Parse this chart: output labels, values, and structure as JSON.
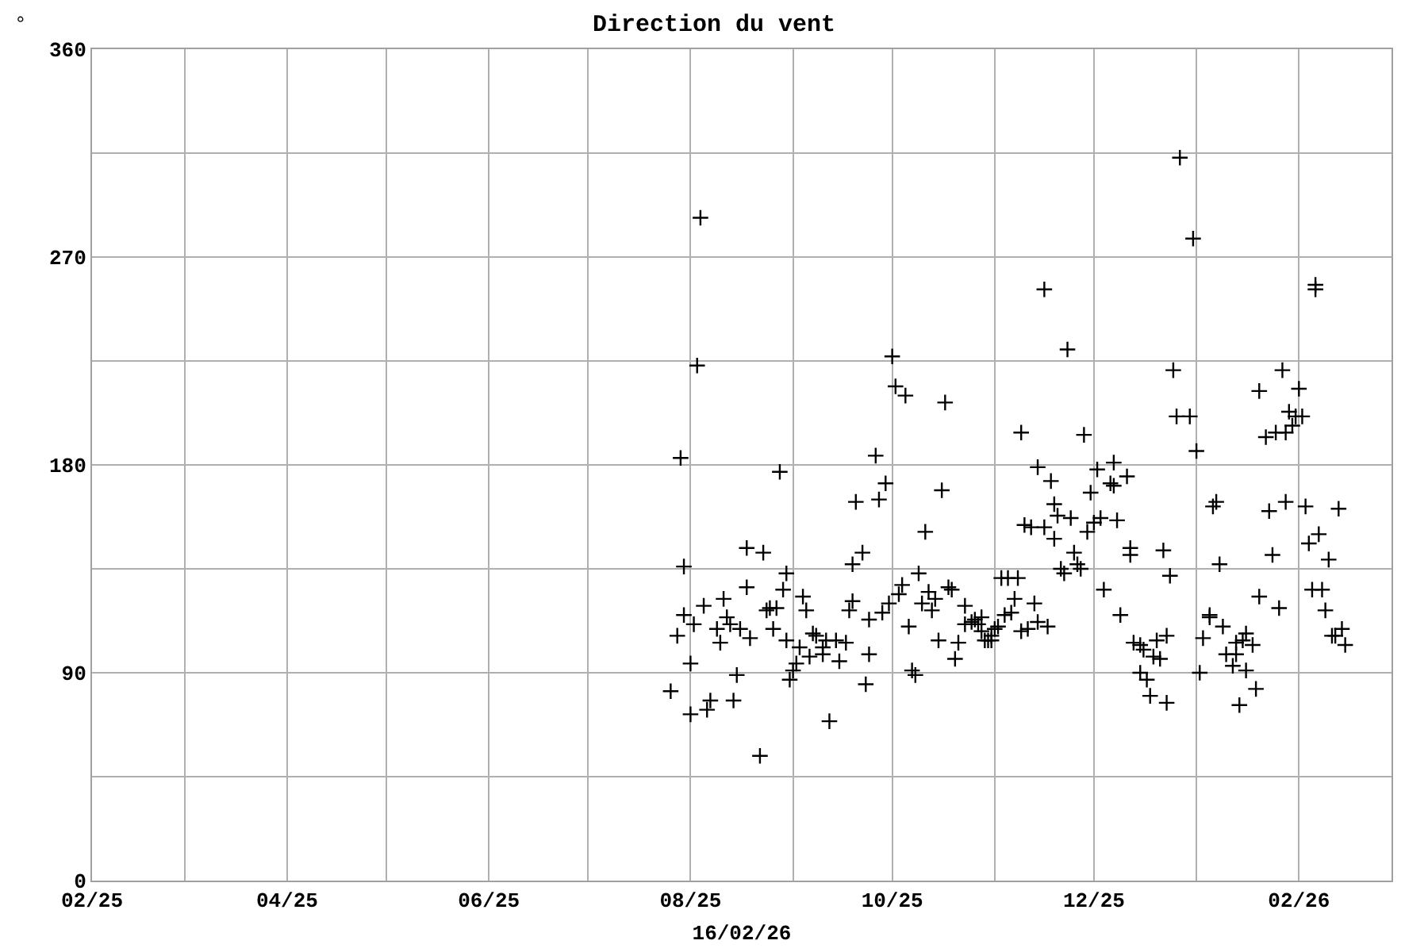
{
  "chart_data": {
    "type": "scatter",
    "title": "Direction du vent",
    "xlabel": "16/02/26",
    "ylabel": "°",
    "marker": "cross",
    "grid": true,
    "color": "#000000",
    "xlim": [
      "2025-02-01",
      "2026-03-01"
    ],
    "xticks": [
      {
        "value": "2025-02-01",
        "label": "02/25"
      },
      {
        "value": "2025-03-01",
        "label": null
      },
      {
        "value": "2025-04-01",
        "label": "04/25"
      },
      {
        "value": "2025-05-01",
        "label": null
      },
      {
        "value": "2025-06-01",
        "label": "06/25"
      },
      {
        "value": "2025-07-01",
        "label": null
      },
      {
        "value": "2025-08-01",
        "label": "08/25"
      },
      {
        "value": "2025-09-01",
        "label": null
      },
      {
        "value": "2025-10-01",
        "label": "10/25"
      },
      {
        "value": "2025-11-01",
        "label": null
      },
      {
        "value": "2025-12-01",
        "label": "12/25"
      },
      {
        "value": "2026-01-01",
        "label": null
      },
      {
        "value": "2026-02-01",
        "label": "02/26"
      }
    ],
    "ylim": [
      0,
      360
    ],
    "yticks": [
      0,
      {
        "value": 45,
        "label": null
      },
      90,
      {
        "value": 135,
        "label": null
      },
      180,
      {
        "value": 225,
        "label": null
      },
      270,
      {
        "value": 315,
        "label": null
      },
      360
    ],
    "x": [
      "2025-07-26",
      "2025-07-28",
      "2025-07-29",
      "2025-07-30",
      "2025-07-30",
      "2025-08-01",
      "2025-08-01",
      "2025-08-02",
      "2025-08-03",
      "2025-08-04",
      "2025-08-05",
      "2025-08-06",
      "2025-08-07",
      "2025-08-09",
      "2025-08-10",
      "2025-08-11",
      "2025-08-12",
      "2025-08-13",
      "2025-08-14",
      "2025-08-15",
      "2025-08-16",
      "2025-08-18",
      "2025-08-18",
      "2025-08-19",
      "2025-08-22",
      "2025-08-23",
      "2025-08-24",
      "2025-08-25",
      "2025-08-26",
      "2025-08-27",
      "2025-08-28",
      "2025-08-29",
      "2025-08-30",
      "2025-08-30",
      "2025-08-31",
      "2025-09-01",
      "2025-09-02",
      "2025-09-03",
      "2025-09-04",
      "2025-09-05",
      "2025-09-06",
      "2025-09-07",
      "2025-09-08",
      "2025-09-10",
      "2025-09-10",
      "2025-09-11",
      "2025-09-12",
      "2025-09-14",
      "2025-09-15",
      "2025-09-17",
      "2025-09-18",
      "2025-09-19",
      "2025-09-19",
      "2025-09-20",
      "2025-09-22",
      "2025-09-23",
      "2025-09-24",
      "2025-09-24",
      "2025-09-26",
      "2025-09-27",
      "2025-09-28",
      "2025-09-29",
      "2025-09-30",
      "2025-10-01",
      "2025-10-02",
      "2025-10-03",
      "2025-10-04",
      "2025-10-05",
      "2025-10-06",
      "2025-10-07",
      "2025-10-08",
      "2025-10-09",
      "2025-10-10",
      "2025-10-11",
      "2025-10-12",
      "2025-10-13",
      "2025-10-14",
      "2025-10-15",
      "2025-10-16",
      "2025-10-17",
      "2025-10-18",
      "2025-10-19",
      "2025-10-20",
      "2025-10-21",
      "2025-10-23",
      "2025-10-23",
      "2025-10-25",
      "2025-10-26",
      "2025-10-27",
      "2025-10-28",
      "2025-10-28",
      "2025-10-29",
      "2025-10-30",
      "2025-10-31",
      "2025-10-31",
      "2025-11-01",
      "2025-11-02",
      "2025-11-03",
      "2025-11-04",
      "2025-11-05",
      "2025-11-06",
      "2025-11-07",
      "2025-11-08",
      "2025-11-09",
      "2025-11-09",
      "2025-11-10",
      "2025-11-11",
      "2025-11-12",
      "2025-11-13",
      "2025-11-14",
      "2025-11-14",
      "2025-11-16",
      "2025-11-16",
      "2025-11-17",
      "2025-11-18",
      "2025-11-19",
      "2025-11-19",
      "2025-11-20",
      "2025-11-21",
      "2025-11-22",
      "2025-11-23",
      "2025-11-24",
      "2025-11-25",
      "2025-11-26",
      "2025-11-27",
      "2025-11-28",
      "2025-11-29",
      "2025-11-30",
      "2025-12-01",
      "2025-12-02",
      "2025-12-03",
      "2025-12-04",
      "2025-12-06",
      "2025-12-07",
      "2025-12-07",
      "2025-12-08",
      "2025-12-09",
      "2025-12-11",
      "2025-12-12",
      "2025-12-12",
      "2025-12-13",
      "2025-12-15",
      "2025-12-15",
      "2025-12-16",
      "2025-12-17",
      "2025-12-18",
      "2025-12-19",
      "2025-12-20",
      "2025-12-21",
      "2025-12-22",
      "2025-12-23",
      "2025-12-23",
      "2025-12-24",
      "2025-12-25",
      "2025-12-26",
      "2025-12-27",
      "2025-12-30",
      "2025-12-31",
      "2026-01-01",
      "2026-01-02",
      "2026-01-03",
      "2026-01-05",
      "2026-01-05",
      "2026-01-06",
      "2026-01-07",
      "2026-01-08",
      "2026-01-09",
      "2026-01-10",
      "2026-01-12",
      "2026-01-13",
      "2026-01-13",
      "2026-01-14",
      "2026-01-15",
      "2026-01-16",
      "2026-01-16",
      "2026-01-18",
      "2026-01-19",
      "2026-01-20",
      "2026-01-20",
      "2026-01-22",
      "2026-01-23",
      "2026-01-24",
      "2026-01-25",
      "2026-01-26",
      "2026-01-27",
      "2026-01-28",
      "2026-01-28",
      "2026-01-29",
      "2026-01-30",
      "2026-01-31",
      "2026-02-01",
      "2026-02-02",
      "2026-02-03",
      "2026-02-04",
      "2026-02-05",
      "2026-02-06",
      "2026-02-06",
      "2026-02-07",
      "2026-02-08",
      "2026-02-09",
      "2026-02-10",
      "2026-02-11",
      "2026-02-12",
      "2026-02-13",
      "2026-02-14",
      "2026-02-15"
    ],
    "values": [
      82,
      106,
      183,
      136,
      115,
      94,
      72,
      111,
      223,
      287,
      119,
      74,
      78,
      109,
      103,
      122,
      114,
      111,
      78,
      89,
      109,
      144,
      127,
      105,
      54,
      142,
      117,
      118,
      109,
      118,
      177,
      126,
      133,
      104,
      87,
      91,
      94,
      101,
      123,
      117,
      97,
      107,
      106,
      98,
      101,
      104,
      69,
      104,
      95,
      103,
      117,
      137,
      121,
      164,
      142,
      85,
      98,
      113,
      184,
      165,
      116,
      172,
      120,
      227,
      214,
      124,
      128,
      210,
      110,
      91,
      89,
      133,
      120,
      151,
      125,
      117,
      122,
      104,
      169,
      207,
      127,
      126,
      96,
      103,
      119,
      111,
      112,
      113,
      111,
      114,
      108,
      104,
      104,
      104,
      106,
      109,
      110,
      131,
      115,
      131,
      116,
      122,
      131,
      194,
      108,
      154,
      109,
      153,
      120,
      112,
      179,
      256,
      153,
      110,
      173,
      163,
      148,
      158,
      135,
      133,
      230,
      157,
      142,
      137,
      135,
      193,
      151,
      168,
      155,
      178,
      157,
      126,
      172,
      181,
      171,
      156,
      115,
      175,
      144,
      141,
      103,
      102,
      90,
      100,
      87,
      80,
      97,
      104,
      96,
      143,
      77,
      106,
      132,
      221,
      201,
      313,
      201,
      278,
      186,
      90,
      105,
      115,
      114,
      162,
      164,
      137,
      110,
      98,
      93,
      98,
      103,
      76,
      104,
      91,
      107,
      102,
      83,
      123,
      212,
      192,
      160,
      141,
      194,
      118,
      221,
      194,
      164,
      203,
      197,
      201,
      213,
      201,
      162,
      146,
      126,
      256,
      258,
      150,
      126,
      117,
      139,
      106,
      106,
      161,
      109,
      102
    ]
  }
}
